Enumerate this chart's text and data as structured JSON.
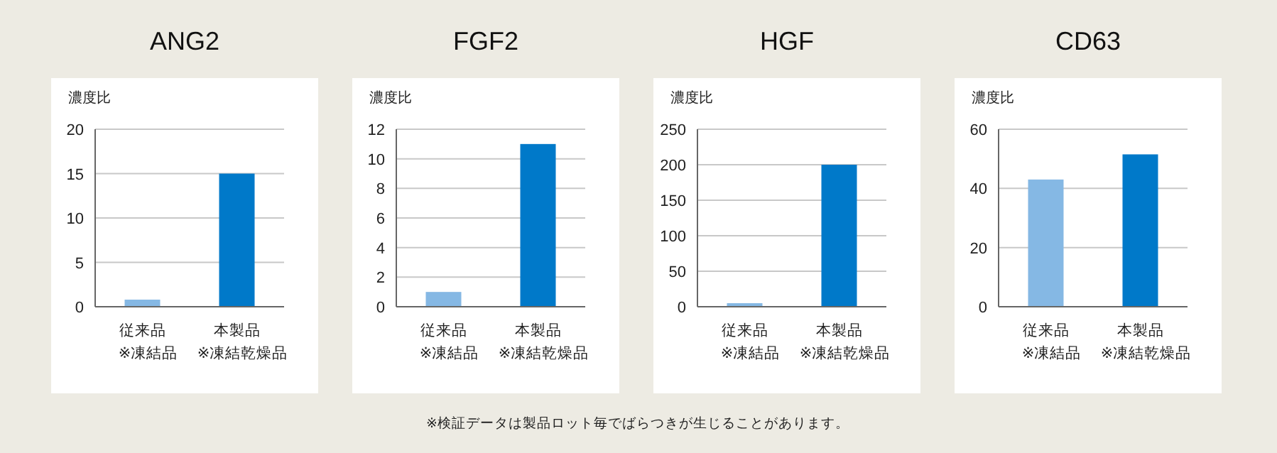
{
  "chart_data": [
    {
      "type": "bar",
      "title": "ANG2",
      "ylabel": "濃度比",
      "categories": [
        "従来品\n※凍結品",
        "本製品\n※凍結乾燥品"
      ],
      "values": [
        0.8,
        15
      ],
      "colors": [
        "#85b8e4",
        "#0079c9"
      ],
      "ylim": [
        0,
        20
      ],
      "yticks": [
        0,
        5,
        10,
        15,
        20
      ],
      "grid": "y",
      "annotations": [
        "※検証データは製品ロット毎でばらつきが生じることがあります。"
      ]
    },
    {
      "type": "bar",
      "title": "FGF2",
      "ylabel": "濃度比",
      "categories": [
        "従来品\n※凍結品",
        "本製品\n※凍結乾燥品"
      ],
      "values": [
        1,
        11
      ],
      "colors": [
        "#85b8e4",
        "#0079c9"
      ],
      "ylim": [
        0,
        12
      ],
      "yticks": [
        0,
        2,
        4,
        6,
        8,
        10,
        12
      ],
      "grid": "y"
    },
    {
      "type": "bar",
      "title": "HGF",
      "ylabel": "濃度比",
      "categories": [
        "従来品\n※凍結品",
        "本製品\n※凍結乾燥品"
      ],
      "values": [
        5,
        200
      ],
      "colors": [
        "#85b8e4",
        "#0079c9"
      ],
      "ylim": [
        0,
        250
      ],
      "yticks": [
        0,
        50,
        100,
        150,
        200,
        250
      ],
      "grid": "y"
    },
    {
      "type": "bar",
      "title": "CD63",
      "ylabel": "濃度比",
      "categories": [
        "従来品\n※凍結品",
        "本製品\n※凍結乾燥品"
      ],
      "values": [
        43,
        51.5
      ],
      "colors": [
        "#85b8e4",
        "#0079c9"
      ],
      "ylim": [
        0,
        60
      ],
      "yticks": [
        0,
        20,
        40,
        60
      ],
      "grid": "y"
    }
  ]
}
